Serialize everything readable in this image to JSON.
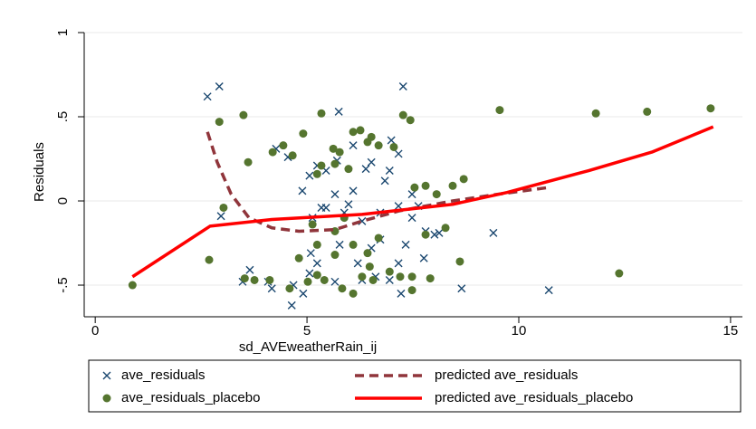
{
  "chart_data": {
    "type": "scatter",
    "x_label": "sd_AVEweatherRain_ij",
    "y_label": "Residuals",
    "xlim": [
      -0.26,
      15.28
    ],
    "ylim": [
      -0.688,
      1.0
    ],
    "xticks": [
      0,
      5,
      10,
      15
    ],
    "yticks": [
      {
        "value": -0.5,
        "label": "-.5"
      },
      0,
      {
        "value": 0.5,
        "label": ".5"
      },
      1
    ],
    "grid": true,
    "series": [
      {
        "name": "ave_residuals",
        "type": "scatter",
        "marker": "x",
        "color": "#1a476f",
        "x": [
          2.65,
          2.93,
          7.27,
          5.75,
          2.97,
          3.65,
          3.48,
          4.08,
          4.17,
          4.64,
          4.68,
          5.06,
          5.09,
          4.89,
          5.06,
          5.24,
          5.45,
          5.71,
          6.39,
          6.52,
          7.16,
          6.99,
          6.09,
          6.95,
          5.45,
          5.88,
          6.3,
          6.73,
          7.16,
          7.48,
          7.8,
          8.01,
          7.63,
          7.48,
          6.84,
          6.09,
          5.66,
          5.34,
          5.77,
          6.2,
          6.62,
          7.16,
          7.33,
          6.52,
          5.24,
          5.66,
          6.3,
          6.95,
          7.22,
          8.12,
          7.76,
          8.65,
          9.4,
          10.71,
          4.55,
          4.27,
          4.91,
          6.73,
          5.98,
          5.13
        ],
        "values": [
          0.62,
          0.68,
          0.68,
          0.53,
          -0.09,
          -0.41,
          -0.48,
          -0.48,
          -0.52,
          -0.62,
          -0.5,
          -0.43,
          -0.31,
          0.06,
          0.15,
          0.21,
          0.18,
          0.24,
          0.19,
          0.23,
          0.28,
          0.36,
          0.33,
          0.18,
          -0.04,
          -0.07,
          -0.12,
          -0.07,
          -0.03,
          -0.1,
          -0.18,
          -0.2,
          -0.03,
          0.04,
          0.12,
          0.06,
          0.04,
          -0.04,
          -0.26,
          -0.37,
          -0.45,
          -0.37,
          -0.26,
          -0.28,
          -0.37,
          -0.48,
          -0.47,
          -0.47,
          -0.55,
          -0.19,
          -0.34,
          -0.52,
          -0.19,
          -0.53,
          0.26,
          0.31,
          -0.55,
          -0.23,
          -0.02,
          -0.1
        ]
      },
      {
        "name": "ave_residuals_placebo",
        "type": "scatter",
        "marker": "circle",
        "color": "#55752f",
        "x": [
          0.88,
          2.69,
          2.93,
          3.03,
          3.5,
          3.61,
          3.53,
          3.76,
          4.12,
          4.19,
          4.44,
          4.66,
          4.91,
          5.34,
          5.24,
          5.34,
          5.62,
          5.77,
          5.66,
          5.98,
          6.09,
          6.26,
          6.43,
          6.52,
          6.69,
          7.05,
          7.27,
          7.44,
          7.54,
          7.8,
          8.06,
          8.44,
          8.7,
          9.55,
          8.27,
          7.8,
          8.61,
          7.91,
          7.48,
          7.2,
          7.48,
          6.95,
          6.69,
          6.43,
          6.09,
          5.66,
          5.24,
          5.24,
          5.02,
          4.59,
          4.81,
          5.41,
          5.83,
          6.09,
          6.3,
          6.56,
          6.48,
          5.13,
          5.66,
          5.88,
          11.82,
          13.03,
          14.53,
          12.37
        ],
        "values": [
          -0.5,
          -0.35,
          0.47,
          -0.04,
          0.51,
          0.23,
          -0.46,
          -0.47,
          -0.47,
          0.29,
          0.33,
          0.27,
          0.4,
          0.52,
          0.16,
          0.21,
          0.31,
          0.29,
          0.22,
          0.19,
          0.41,
          0.42,
          0.35,
          0.38,
          0.33,
          0.32,
          0.51,
          0.48,
          0.08,
          0.09,
          0.04,
          0.09,
          0.13,
          0.54,
          -0.16,
          -0.2,
          -0.36,
          -0.46,
          -0.45,
          -0.45,
          -0.53,
          -0.42,
          -0.22,
          -0.31,
          -0.26,
          -0.32,
          -0.26,
          -0.44,
          -0.48,
          -0.52,
          -0.34,
          -0.47,
          -0.52,
          -0.55,
          -0.45,
          -0.47,
          -0.39,
          -0.14,
          -0.18,
          -0.1,
          0.52,
          0.53,
          0.55,
          -0.43
        ]
      },
      {
        "name": "predicted ave_residuals",
        "type": "line",
        "style": "dashed",
        "color": "#90353b",
        "x": [
          2.65,
          2.88,
          3.21,
          3.63,
          4.17,
          4.81,
          5.66,
          6.3,
          7.16,
          8.44,
          9.51,
          10.71
        ],
        "values": [
          0.41,
          0.23,
          0.04,
          -0.1,
          -0.16,
          -0.18,
          -0.17,
          -0.12,
          -0.06,
          0.0,
          0.04,
          0.08
        ]
      },
      {
        "name": "predicted ave_residuals_placebo",
        "type": "line",
        "style": "solid",
        "color": "#ff0000",
        "x": [
          0.88,
          2.71,
          4.17,
          6.3,
          8.44,
          9.72,
          11.65,
          13.14,
          14.59
        ],
        "values": [
          -0.45,
          -0.15,
          -0.11,
          -0.08,
          -0.02,
          0.05,
          0.18,
          0.29,
          0.44
        ]
      }
    ]
  }
}
